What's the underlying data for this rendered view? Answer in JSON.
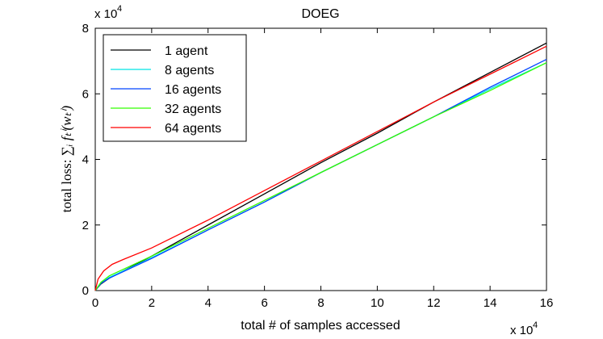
{
  "chart_data": {
    "type": "line",
    "title": "DOEG",
    "xlabel": "total # of samples accessed",
    "ylabel_prefix": "total loss: ",
    "ylabel_math": "∑ᵢ fₜⁱ(wₜⁱ)",
    "x_multiplier_label": "x 10",
    "x_multiplier_exp": "4",
    "y_multiplier_label": "x 10",
    "y_multiplier_exp": "4",
    "xlim": [
      0,
      16
    ],
    "ylim": [
      0,
      8
    ],
    "x_ticks": [
      0,
      2,
      4,
      6,
      8,
      10,
      12,
      14,
      16
    ],
    "x_tick_labels": [
      "0",
      "2",
      "4",
      "6",
      "8",
      "10",
      "12",
      "14",
      "16"
    ],
    "y_ticks": [
      0,
      2,
      4,
      6,
      8
    ],
    "y_tick_labels": [
      "0",
      "2",
      "4",
      "6",
      "8"
    ],
    "grid": false,
    "legend_position": "top-left",
    "series": [
      {
        "name": "1 agent",
        "color": "#000000",
        "x": [
          0,
          0.2,
          0.5,
          1,
          2,
          4,
          6,
          8,
          10,
          12,
          14,
          16
        ],
        "y": [
          0,
          0.2,
          0.38,
          0.6,
          1.05,
          2.0,
          2.95,
          3.9,
          4.8,
          5.75,
          6.65,
          7.55
        ]
      },
      {
        "name": "8 agents",
        "color": "#00e5e5",
        "x": [
          0,
          0.2,
          0.5,
          1,
          2,
          4,
          6,
          8,
          10,
          12,
          14,
          16
        ],
        "y": [
          0,
          0.22,
          0.4,
          0.6,
          1.0,
          1.85,
          2.7,
          3.6,
          4.45,
          5.3,
          6.15,
          6.95
        ]
      },
      {
        "name": "16 agents",
        "color": "#0044ff",
        "x": [
          0,
          0.2,
          0.5,
          1,
          2,
          4,
          6,
          8,
          10,
          12,
          14,
          16
        ],
        "y": [
          0,
          0.22,
          0.38,
          0.58,
          0.98,
          1.85,
          2.7,
          3.6,
          4.45,
          5.3,
          6.2,
          7.05
        ]
      },
      {
        "name": "32 agents",
        "color": "#33ff00",
        "x": [
          0,
          0.2,
          0.5,
          1,
          2,
          4,
          6,
          8,
          10,
          12,
          14,
          16
        ],
        "y": [
          0,
          0.25,
          0.45,
          0.65,
          1.05,
          1.9,
          2.75,
          3.6,
          4.45,
          5.3,
          6.1,
          6.95
        ]
      },
      {
        "name": "64 agents",
        "color": "#ff0000",
        "x": [
          0,
          0.1,
          0.3,
          0.6,
          1,
          2,
          4,
          6,
          8,
          10,
          12,
          14,
          16
        ],
        "y": [
          0,
          0.35,
          0.6,
          0.8,
          0.95,
          1.3,
          2.15,
          3.05,
          3.95,
          4.85,
          5.75,
          6.6,
          7.45
        ]
      }
    ]
  }
}
